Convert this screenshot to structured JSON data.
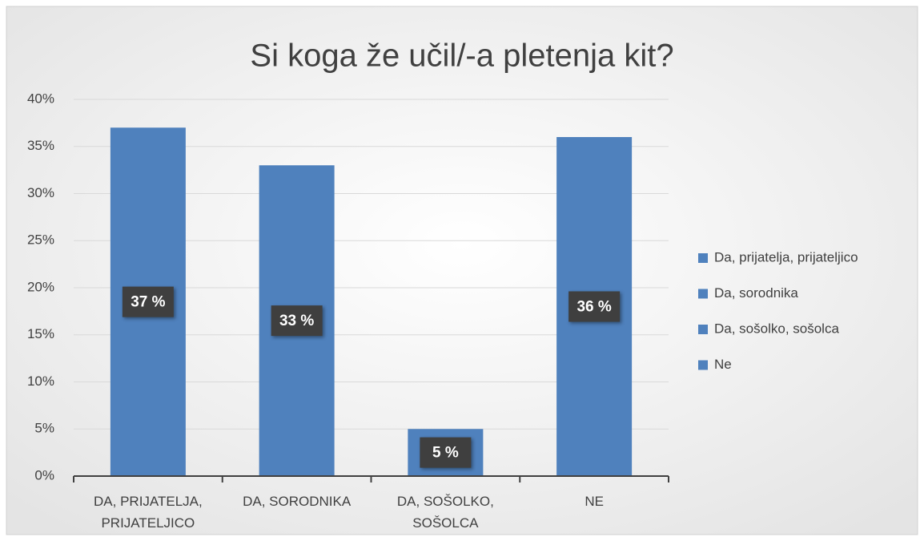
{
  "chart_data": {
    "type": "bar",
    "title": "Si koga že učil/-a pletenja kit?",
    "categories": [
      "DA, PRIJATELJA, PRIJATELJICO",
      "DA, SORODNIKA",
      "DA, SOŠOLKO, SOŠOLCA",
      "NE"
    ],
    "values": [
      37,
      33,
      5,
      36
    ],
    "value_labels": [
      "37 %",
      "33 %",
      "5 %",
      "36 %"
    ],
    "color": "#4f81bd",
    "legend": [
      "Da, prijatelja, prijateljico",
      "Da, sorodnika",
      "Da, sošolko, sošolca",
      "Ne"
    ],
    "legend_position": "right",
    "ylim": [
      0,
      40
    ],
    "yticks": [
      {
        "value": 0,
        "label": "0%"
      },
      {
        "value": 5,
        "label": "5%"
      },
      {
        "value": 10,
        "label": "10%"
      },
      {
        "value": 15,
        "label": "15%"
      },
      {
        "value": 20,
        "label": "20%"
      },
      {
        "value": 25,
        "label": "25%"
      },
      {
        "value": 30,
        "label": "30%"
      },
      {
        "value": 35,
        "label": "35%"
      },
      {
        "value": 40,
        "label": "40%"
      }
    ],
    "grid": true
  }
}
